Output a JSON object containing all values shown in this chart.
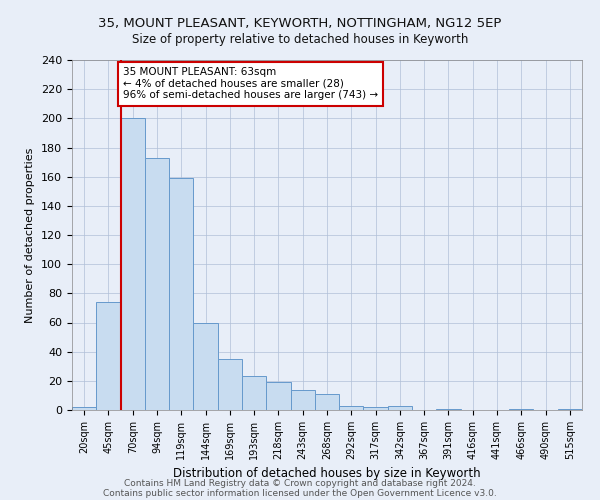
{
  "title1": "35, MOUNT PLEASANT, KEYWORTH, NOTTINGHAM, NG12 5EP",
  "title2": "Size of property relative to detached houses in Keyworth",
  "xlabel": "Distribution of detached houses by size in Keyworth",
  "ylabel": "Number of detached properties",
  "bar_labels": [
    "20sqm",
    "45sqm",
    "70sqm",
    "94sqm",
    "119sqm",
    "144sqm",
    "169sqm",
    "193sqm",
    "218sqm",
    "243sqm",
    "268sqm",
    "292sqm",
    "317sqm",
    "342sqm",
    "367sqm",
    "391sqm",
    "416sqm",
    "441sqm",
    "466sqm",
    "490sqm",
    "515sqm"
  ],
  "bar_values": [
    2,
    74,
    200,
    173,
    159,
    60,
    35,
    23,
    19,
    14,
    11,
    3,
    2,
    3,
    0,
    1,
    0,
    0,
    1,
    0,
    1
  ],
  "bar_color": "#c8dcf0",
  "bar_edge_color": "#6699cc",
  "subject_line_color": "#cc0000",
  "annotation_text": "35 MOUNT PLEASANT: 63sqm\n← 4% of detached houses are smaller (28)\n96% of semi-detached houses are larger (743) →",
  "annotation_box_color": "#ffffff",
  "annotation_box_edge": "#cc0000",
  "ylim": [
    0,
    240
  ],
  "yticks": [
    0,
    20,
    40,
    60,
    80,
    100,
    120,
    140,
    160,
    180,
    200,
    220,
    240
  ],
  "footer1": "Contains HM Land Registry data © Crown copyright and database right 2024.",
  "footer2": "Contains public sector information licensed under the Open Government Licence v3.0.",
  "bg_color": "#e8eef8",
  "grid_color": "#b0c0d8"
}
